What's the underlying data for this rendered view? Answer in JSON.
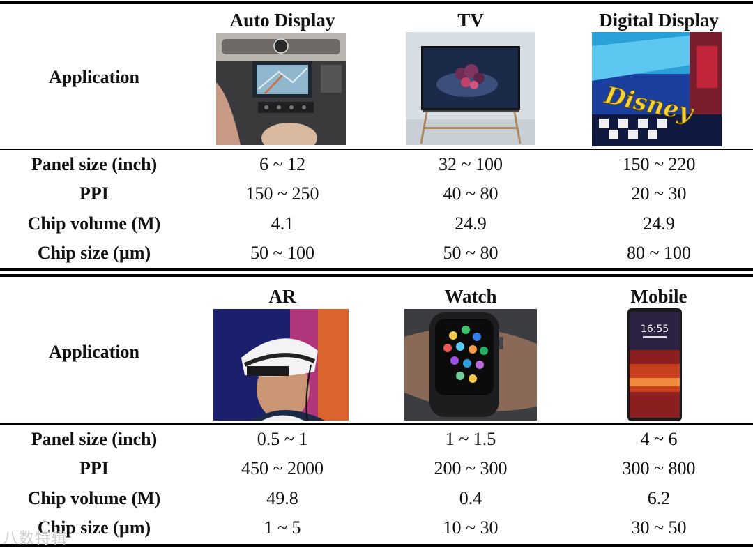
{
  "table_top": {
    "row_header_application": "Application",
    "columns": [
      {
        "name": "Auto Display"
      },
      {
        "name": "TV"
      },
      {
        "name": "Digital Display"
      }
    ],
    "rows": [
      {
        "label": "Panel size (inch)",
        "values": [
          "6 ~ 12",
          "32 ~ 100",
          "150 ~ 220"
        ]
      },
      {
        "label": "PPI",
        "values": [
          "150 ~ 250",
          "40 ~ 80",
          "20 ~ 30"
        ]
      },
      {
        "label": "Chip volume (M)",
        "values": [
          "4.1",
          "24.9",
          "24.9"
        ]
      },
      {
        "label": "Chip size (µm)",
        "values": [
          "50 ~ 100",
          "50 ~ 80",
          "80 ~ 100"
        ]
      }
    ]
  },
  "table_bottom": {
    "row_header_application": "Application",
    "columns": [
      {
        "name": "AR"
      },
      {
        "name": "Watch"
      },
      {
        "name": "Mobile"
      }
    ],
    "rows": [
      {
        "label": "Panel size (inch)",
        "values": [
          "0.5 ~ 1",
          "1 ~ 1.5",
          "4 ~ 6"
        ]
      },
      {
        "label": "PPI",
        "values": [
          "450 ~ 2000",
          "200 ~ 300",
          "300 ~ 800"
        ]
      },
      {
        "label": "Chip volume (M)",
        "values": [
          "49.8",
          "0.4",
          "6.2"
        ]
      },
      {
        "label": "Chip size (µm)",
        "values": [
          "1 ~ 5",
          "10 ~ 30",
          "30 ~ 50"
        ]
      }
    ]
  },
  "photos": {
    "disney_logo_text": "Disney",
    "phone_clock": "16:55"
  },
  "watermark": "八数特辑"
}
